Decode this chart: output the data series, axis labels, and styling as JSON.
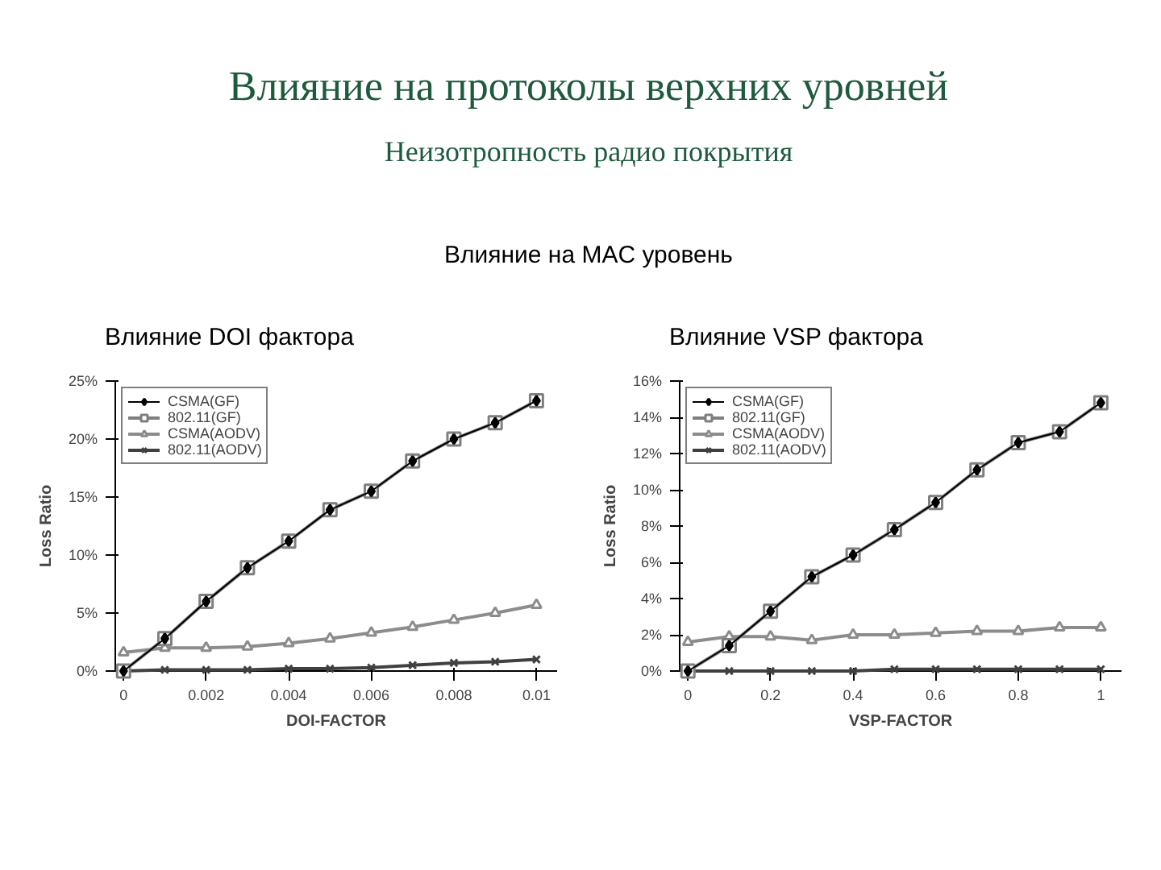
{
  "chart_data": [
    {
      "type": "line",
      "title": "Влияние DOI фактора",
      "annotations": [
        "Влияние на протоколы верхних уровней",
        "Неизотропность радио покрытия",
        "Влияние на MAC уровень"
      ],
      "xlabel": "DOI-FACTOR",
      "ylabel": "Loss Ratio",
      "x": [
        0,
        0.001,
        0.002,
        0.003,
        0.004,
        0.005,
        0.006,
        0.007,
        0.008,
        0.009,
        0.01
      ],
      "xlim": [
        -0.0002,
        0.0105
      ],
      "xticks": [
        0,
        0.002,
        0.004,
        0.006,
        0.008,
        0.01
      ],
      "ylim": [
        0,
        25
      ],
      "yticks": [
        {
          "value": 0,
          "label": "0%"
        },
        {
          "value": 5,
          "label": "5%"
        },
        {
          "value": 10,
          "label": "10%"
        },
        {
          "value": 15,
          "label": "15%"
        },
        {
          "value": 20,
          "label": "20%"
        },
        {
          "value": 25,
          "label": "25%"
        }
      ],
      "grid": false,
      "legend": "top left",
      "series": [
        {
          "name": "CSMA(GF)",
          "color": "#000000",
          "marker": "diamond",
          "values": [
            0,
            2.8,
            6.0,
            8.9,
            11.2,
            13.9,
            15.5,
            18.1,
            20.0,
            21.4,
            23.3
          ]
        },
        {
          "name": "802.11(GF)",
          "color": "#7f7f7f",
          "marker": "square",
          "values": [
            0,
            2.8,
            6.0,
            8.9,
            11.2,
            13.9,
            15.5,
            18.1,
            20.0,
            21.4,
            23.3
          ]
        },
        {
          "name": "CSMA(AODV)",
          "color": "#8c8c8c",
          "marker": "triangle",
          "values": [
            1.6,
            2.0,
            2.0,
            2.1,
            2.4,
            2.8,
            3.3,
            3.8,
            4.4,
            5.0,
            5.7
          ]
        },
        {
          "name": "802.11(AODV)",
          "color": "#404040",
          "marker": "cross",
          "values": [
            0,
            0.1,
            0.1,
            0.1,
            0.2,
            0.2,
            0.3,
            0.5,
            0.7,
            0.8,
            1.0
          ]
        }
      ]
    },
    {
      "type": "line",
      "title": "Влияние VSP фактора",
      "xlabel": "VSP-FACTOR",
      "ylabel": "Loss Ratio",
      "x": [
        0,
        0.1,
        0.2,
        0.3,
        0.4,
        0.5,
        0.6,
        0.7,
        0.8,
        0.9,
        1
      ],
      "xlim": [
        -0.02,
        1.05
      ],
      "xticks": [
        0,
        0.2,
        0.4,
        0.6,
        0.8,
        1
      ],
      "ylim": [
        0,
        16
      ],
      "yticks": [
        {
          "value": 0,
          "label": "0%"
        },
        {
          "value": 2,
          "label": "2%"
        },
        {
          "value": 4,
          "label": "4%"
        },
        {
          "value": 6,
          "label": "6%"
        },
        {
          "value": 8,
          "label": "8%"
        },
        {
          "value": 10,
          "label": "10%"
        },
        {
          "value": 12,
          "label": "12%"
        },
        {
          "value": 14,
          "label": "14%"
        },
        {
          "value": 16,
          "label": "16%"
        }
      ],
      "grid": false,
      "legend": "top left",
      "series": [
        {
          "name": "CSMA(GF)",
          "color": "#000000",
          "marker": "diamond",
          "values": [
            0,
            1.4,
            3.3,
            5.2,
            6.4,
            7.8,
            9.3,
            11.1,
            12.6,
            13.2,
            14.8
          ]
        },
        {
          "name": "802.11(GF)",
          "color": "#7f7f7f",
          "marker": "square",
          "values": [
            0,
            1.4,
            3.3,
            5.2,
            6.4,
            7.8,
            9.3,
            11.1,
            12.6,
            13.2,
            14.8
          ]
        },
        {
          "name": "CSMA(AODV)",
          "color": "#8c8c8c",
          "marker": "triangle",
          "values": [
            1.6,
            1.9,
            1.9,
            1.7,
            2.0,
            2.0,
            2.1,
            2.2,
            2.2,
            2.4,
            2.4
          ]
        },
        {
          "name": "802.11(AODV)",
          "color": "#404040",
          "marker": "cross",
          "values": [
            0,
            0,
            0,
            0,
            0,
            0.1,
            0.1,
            0.1,
            0.1,
            0.1,
            0.1
          ]
        }
      ]
    }
  ]
}
